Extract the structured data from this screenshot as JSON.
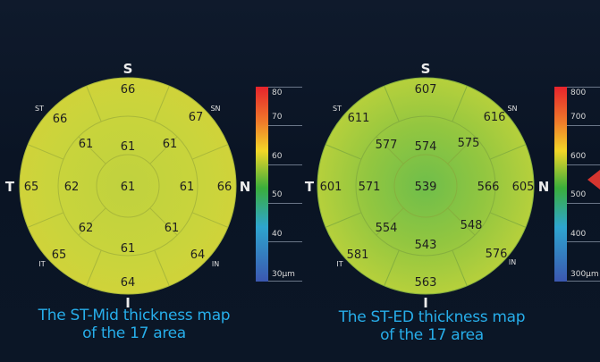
{
  "maps": [
    {
      "caption_line1": "The ST-Mid thickness map",
      "caption_line2": "of the 17 area",
      "directions": {
        "top": "S",
        "bottom": "I",
        "left": "T",
        "right": "N"
      },
      "quadrants": {
        "st": "ST",
        "sn": "SN",
        "it": "IT",
        "in": "IN"
      },
      "center": "61",
      "inner": {
        "top": "61",
        "bottom": "61",
        "left": "62",
        "right": "61"
      },
      "middle": {
        "top_left": "61",
        "top_right": "61",
        "bottom_left": "62",
        "bottom_right": "61"
      },
      "outer": {
        "top": "66",
        "top_right": "67",
        "right": "66",
        "bottom_right": "64",
        "bottom": "64",
        "bottom_left": "65",
        "left": "65",
        "top_left": "66"
      },
      "scale_labels": [
        "80",
        "70",
        "60",
        "50",
        "40",
        "30µm"
      ],
      "fill_color": "#c6d23c"
    },
    {
      "caption_line1": "The ST-ED thickness map",
      "caption_line2": "of the 17 area",
      "directions": {
        "top": "S",
        "bottom": "I",
        "left": "T",
        "right": "N"
      },
      "quadrants": {
        "st": "ST",
        "sn": "SN",
        "it": "IT",
        "in": "IN"
      },
      "center": "539",
      "inner": {
        "top": "574",
        "bottom": "543",
        "left": "571",
        "right": "566"
      },
      "middle": {
        "top_left": "577",
        "top_right": "575",
        "bottom_left": "554",
        "bottom_right": "548"
      },
      "outer": {
        "top": "607",
        "top_right": "616",
        "right": "605",
        "bottom_right": "576",
        "bottom": "563",
        "bottom_left": "581",
        "left": "601",
        "top_left": "611"
      },
      "scale_labels": [
        "800",
        "700",
        "600",
        "500",
        "400",
        "300µm"
      ],
      "fill_color": "#9ecb3c"
    }
  ],
  "colors": {
    "caption": "#27aeea",
    "arrow": "#d6352f"
  }
}
